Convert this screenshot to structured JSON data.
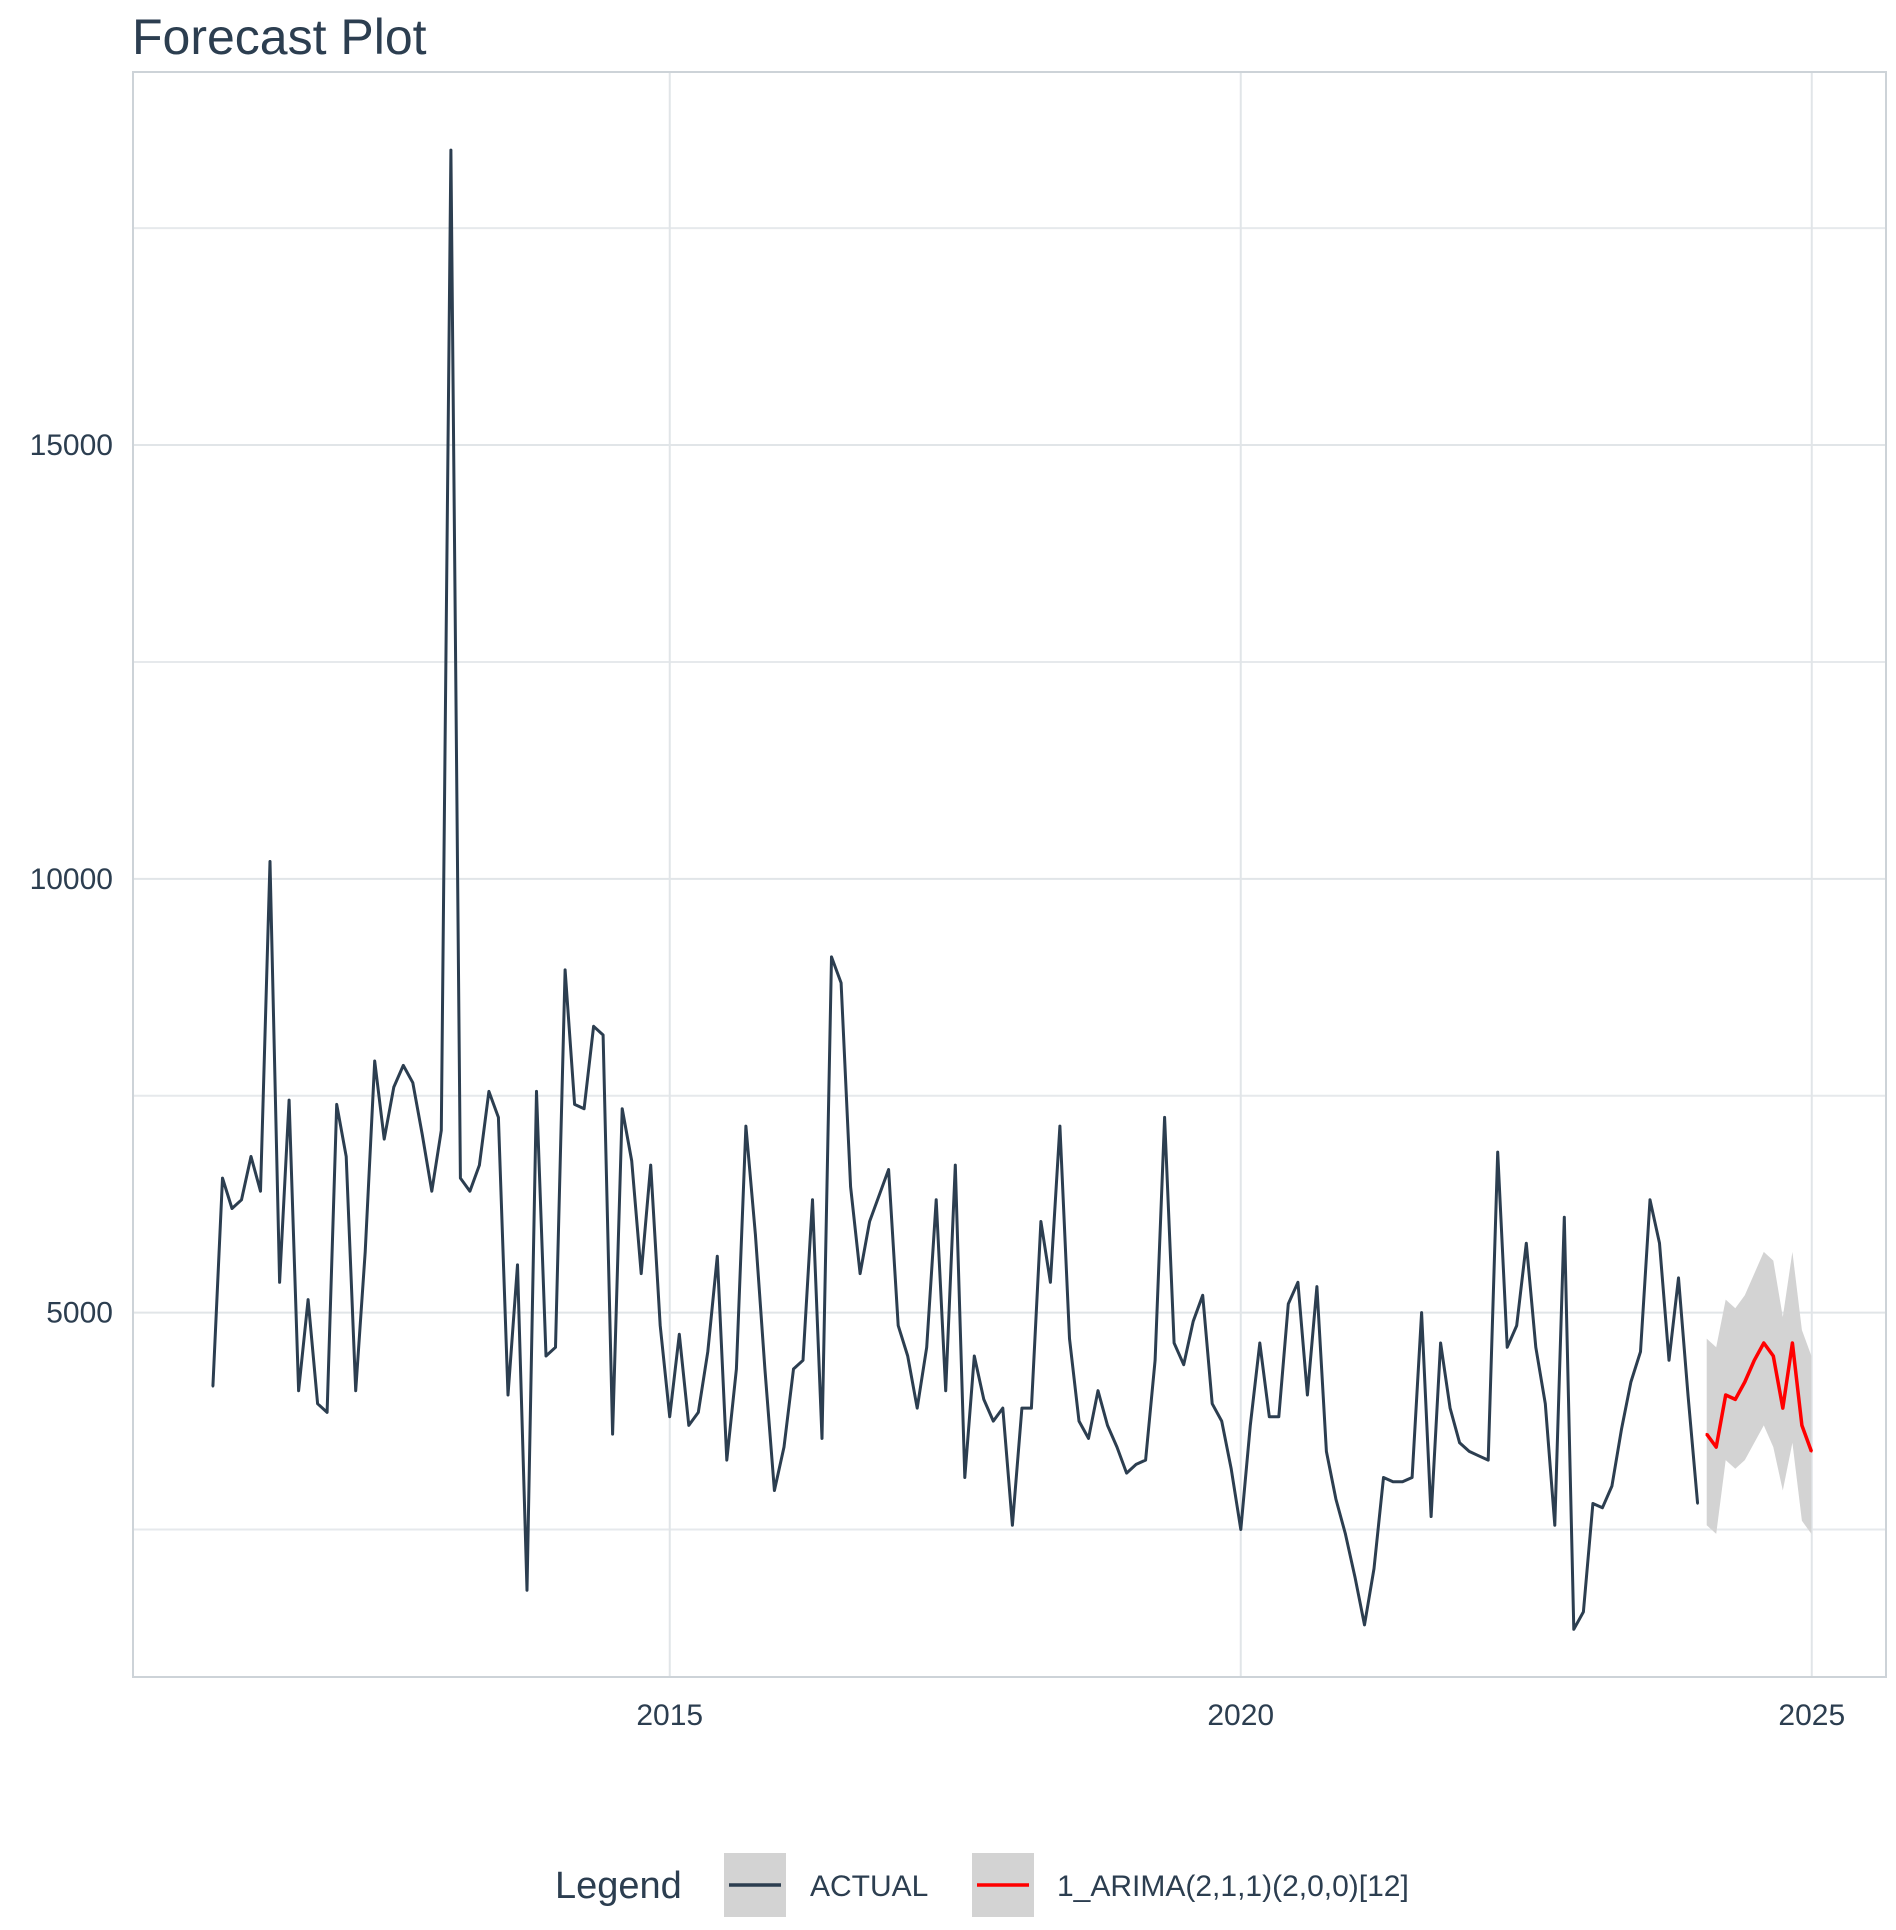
{
  "chart_data": {
    "type": "line",
    "title": "Forecast Plot",
    "xlabel": "",
    "ylabel": "",
    "xlim": [
      2010.3,
      2025.65
    ],
    "ylim": [
      800,
      19300
    ],
    "x_ticks": [
      2015,
      2020,
      2025
    ],
    "y_ticks": [
      5000,
      10000,
      15000
    ],
    "y_minor_gridlines": [
      2500,
      7500,
      12500,
      17500
    ],
    "grid": true,
    "legend": {
      "title": "Legend",
      "placement": "bottom",
      "entries": [
        "ACTUAL",
        "1_ARIMA(2,1,1)(2,0,0)[12]"
      ]
    },
    "series": [
      {
        "name": "ACTUAL",
        "color": "#2c3e50",
        "x_start": 2011.0,
        "step": 0.0833333,
        "values": [
          4150,
          6550,
          6200,
          6300,
          6800,
          6400,
          10200,
          5350,
          7450,
          4100,
          5150,
          3950,
          3850,
          7400,
          6800,
          4100,
          5700,
          7900,
          7000,
          7600,
          7850,
          7650,
          7050,
          6400,
          7100,
          18400,
          6550,
          6400,
          6700,
          7550,
          7250,
          4050,
          5550,
          1800,
          7550,
          4500,
          4600,
          8950,
          7400,
          7350,
          8300,
          8200,
          3600,
          7350,
          6750,
          5450,
          6700,
          4850,
          3800,
          4750,
          3700,
          3850,
          4550,
          5650,
          3300,
          4350,
          7150,
          5900,
          4350,
          2950,
          3450,
          4350,
          4450,
          6300,
          3550,
          9100,
          8800,
          6450,
          5450,
          6050,
          6350,
          6650,
          4850,
          4500,
          3900,
          4600,
          6300,
          4100,
          6700,
          3100,
          4500,
          4000,
          3750,
          3900,
          2550,
          3900,
          3900,
          6050,
          5350,
          7150,
          4700,
          3750,
          3550,
          4100,
          3700,
          3450,
          3150,
          3250,
          3300,
          4450,
          7250,
          4650,
          4400,
          4900,
          5200,
          3950,
          3750,
          3200,
          2500,
          3700,
          4650,
          3800,
          3800,
          5100,
          5350,
          4050,
          5300,
          3400,
          2850,
          2450,
          1950,
          1400,
          2050,
          3100,
          3050,
          3050,
          3100,
          5000,
          2650,
          4650,
          3900,
          3500,
          3400,
          3350,
          3300,
          6850,
          4600,
          4850,
          5800,
          4600,
          3950,
          2550,
          6100,
          1350,
          1550,
          2800,
          2750,
          3000,
          3650,
          4200,
          4550,
          6300,
          5800,
          4450,
          5400,
          4050,
          2800
        ]
      },
      {
        "name": "1_ARIMA(2,1,1)(2,0,0)[12]",
        "color": "#ff0000",
        "x_start": 2024.08,
        "step": 0.0833333,
        "values": [
          3600,
          3450,
          4050,
          4000,
          4200,
          4450,
          4650,
          4500,
          3900,
          4650,
          3700,
          3400
        ],
        "lower": [
          2550,
          2450,
          3300,
          3200,
          3300,
          3500,
          3700,
          3450,
          2950,
          3500,
          2600,
          2450
        ],
        "upper": [
          4700,
          4600,
          5150,
          5050,
          5200,
          5450,
          5700,
          5600,
          4950,
          5700,
          4800,
          4500
        ]
      }
    ]
  }
}
